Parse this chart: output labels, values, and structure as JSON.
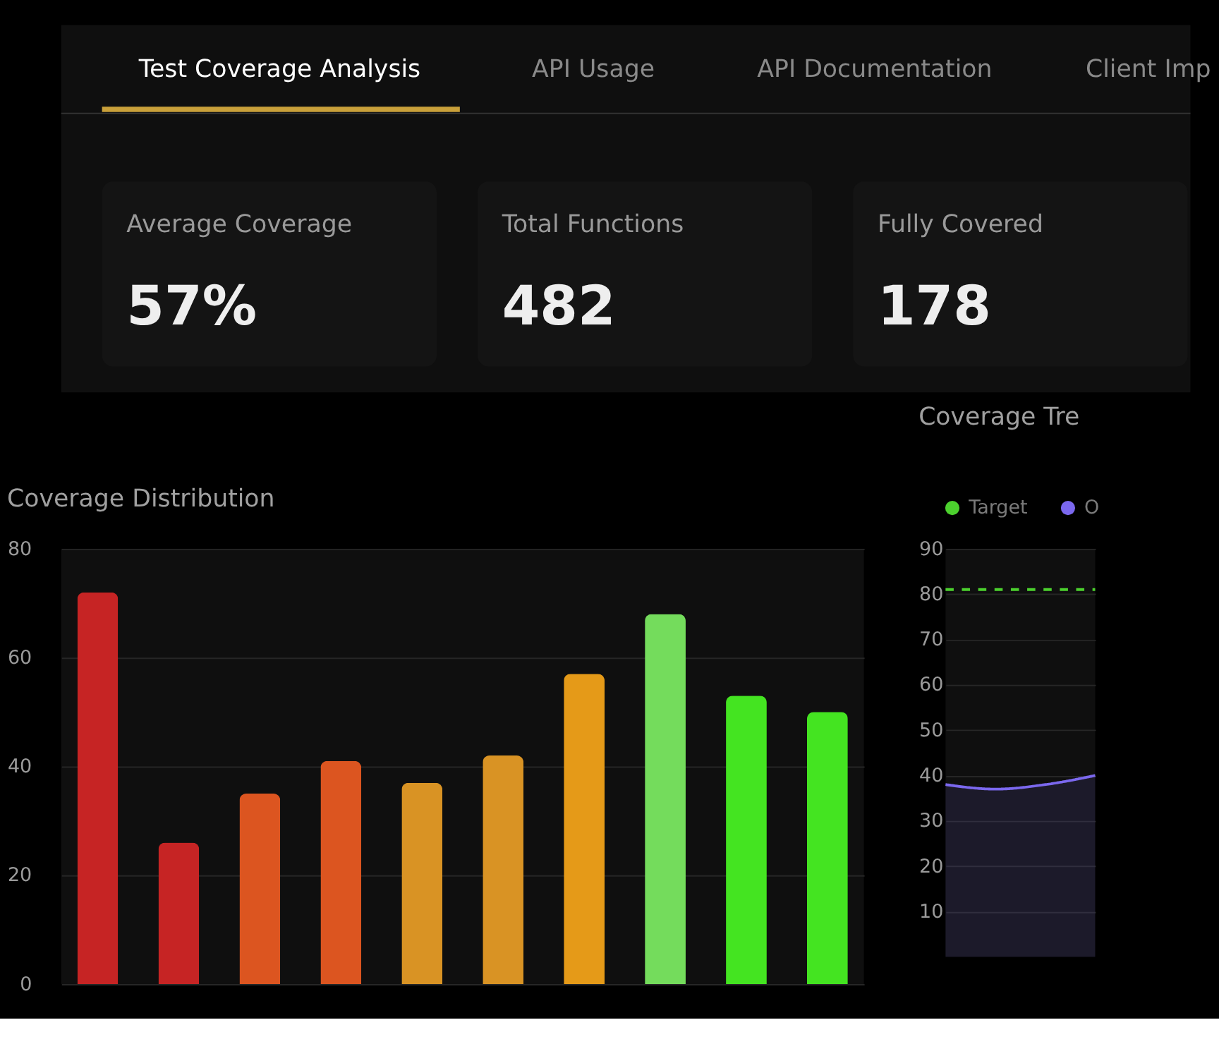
{
  "chart_data": [
    {
      "type": "other",
      "categories": [
        "Average Coverage",
        "Total Functions",
        "Fully Covered"
      ],
      "values": [
        57,
        482,
        178
      ],
      "value_labels": [
        "57%",
        "482",
        "178"
      ],
      "annotations": [
        "Test Coverage Analysis",
        "API Usage",
        "API Documentation",
        "Client Imp"
      ]
    },
    {
      "type": "bar",
      "title": "Coverage Distribution",
      "categories": [
        null,
        null,
        null,
        null,
        null,
        null,
        null,
        null,
        null,
        null
      ],
      "values": [
        72,
        26,
        35,
        41,
        37,
        42,
        57,
        68,
        53,
        50
      ],
      "colors": [
        "#c62424",
        "#c62424",
        "#dc5520",
        "#dc5520",
        "#d99324",
        "#d99324",
        "#e59a18",
        "#74dc5c",
        "#44e421",
        "#44e421"
      ],
      "ylim": [
        0,
        80
      ],
      "yticks": [
        0,
        20,
        40,
        60,
        80
      ],
      "grid": "y"
    },
    {
      "type": "line",
      "title": "Coverage Tre",
      "categories": [
        null,
        null,
        null,
        null
      ],
      "ylim": [
        0,
        90
      ],
      "yticks": [
        10,
        20,
        30,
        40,
        50,
        60,
        70,
        80,
        90
      ],
      "grid": "y",
      "legend": "top left",
      "series": [
        {
          "name": "Target",
          "color": "#4cd12e",
          "values": [
            81,
            81,
            81,
            81
          ],
          "line_style": "dashed"
        },
        {
          "name": "O",
          "color": "#7b68ee",
          "type": "area",
          "values": [
            38,
            37,
            38,
            40
          ]
        }
      ]
    }
  ]
}
